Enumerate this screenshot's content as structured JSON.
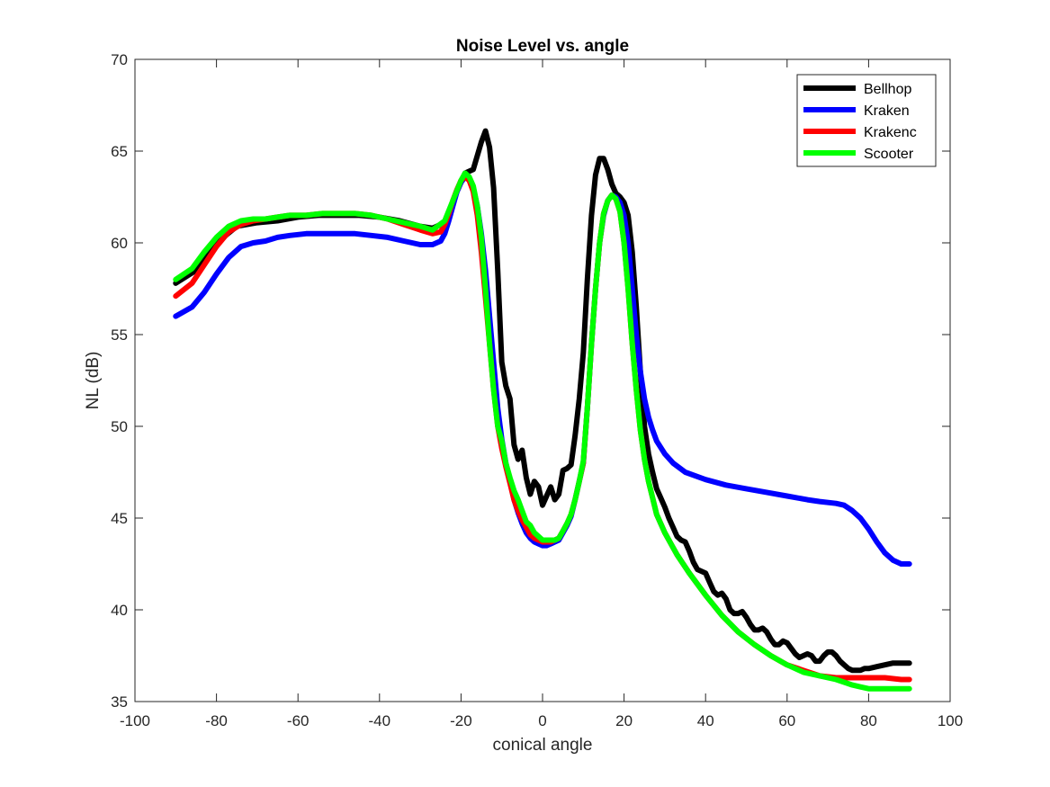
{
  "chart_data": {
    "type": "line",
    "title": "Noise Level vs. angle",
    "xlabel": "conical angle",
    "ylabel": "NL (dB)",
    "xlim": [
      -100,
      100
    ],
    "ylim": [
      35,
      70
    ],
    "xticks": [
      -100,
      -80,
      -60,
      -40,
      -20,
      0,
      20,
      40,
      60,
      80,
      100
    ],
    "yticks": [
      35,
      40,
      45,
      50,
      55,
      60,
      65,
      70
    ],
    "xtick_labels": [
      "-100",
      "-80",
      "-60",
      "-40",
      "-20",
      "0",
      "20",
      "40",
      "60",
      "80",
      "100"
    ],
    "ytick_labels": [
      "35",
      "40",
      "45",
      "50",
      "55",
      "60",
      "65",
      "70"
    ],
    "grid": false,
    "legend_position": "top-right",
    "series": [
      {
        "name": "Bellhop",
        "color": "#000000",
        "x": [
          -90,
          -85,
          -80,
          -75,
          -70,
          -65,
          -60,
          -55,
          -50,
          -45,
          -40,
          -35,
          -30,
          -27,
          -24,
          -21,
          -19,
          -17,
          -15,
          -14,
          -13,
          -12,
          -11,
          -10,
          -9,
          -8,
          -7,
          -6,
          -5,
          -4,
          -3,
          -2,
          -1,
          0,
          1,
          2,
          3,
          4,
          5,
          6,
          7,
          8,
          9,
          10,
          11,
          12,
          13,
          14,
          15,
          16,
          17,
          18,
          19,
          20,
          21,
          22,
          23,
          24,
          25,
          26,
          27,
          28,
          29,
          30,
          31,
          32,
          33,
          34,
          35,
          36,
          37,
          38,
          39,
          40,
          41,
          42,
          43,
          44,
          45,
          46,
          47,
          48,
          49,
          50,
          51,
          52,
          53,
          54,
          55,
          56,
          57,
          58,
          59,
          60,
          61,
          62,
          63,
          64,
          65,
          66,
          67,
          68,
          69,
          70,
          71,
          72,
          73,
          74,
          75,
          76,
          77,
          78,
          79,
          80,
          82,
          84,
          86,
          88,
          90
        ],
        "y": [
          57.8,
          58.5,
          60.0,
          60.9,
          61.1,
          61.2,
          61.4,
          61.5,
          61.5,
          61.5,
          61.4,
          61.2,
          60.9,
          60.8,
          61.1,
          62.8,
          63.8,
          64.0,
          65.5,
          66.1,
          65.2,
          63.0,
          58.5,
          53.5,
          52.2,
          51.5,
          49.0,
          48.2,
          48.7,
          47.2,
          46.3,
          47.0,
          46.7,
          45.7,
          46.2,
          46.7,
          46.0,
          46.3,
          47.6,
          47.7,
          47.9,
          49.5,
          51.5,
          54.0,
          58.0,
          61.5,
          63.7,
          64.6,
          64.6,
          64.0,
          63.2,
          62.7,
          62.5,
          62.2,
          61.5,
          59.5,
          56.5,
          53.0,
          50.0,
          48.5,
          47.5,
          46.6,
          46.1,
          45.6,
          45.0,
          44.5,
          44.0,
          43.8,
          43.7,
          43.2,
          42.6,
          42.2,
          42.1,
          42.0,
          41.5,
          41.0,
          40.8,
          40.9,
          40.6,
          40.0,
          39.8,
          39.8,
          39.9,
          39.6,
          39.2,
          38.9,
          38.9,
          39.0,
          38.8,
          38.4,
          38.1,
          38.1,
          38.3,
          38.2,
          37.9,
          37.6,
          37.4,
          37.5,
          37.6,
          37.5,
          37.2,
          37.2,
          37.5,
          37.7,
          37.7,
          37.5,
          37.2,
          37.0,
          36.8,
          36.7,
          36.7,
          36.7,
          36.8,
          36.8,
          36.9,
          37.0,
          37.1,
          37.1,
          37.1
        ]
      },
      {
        "name": "Kraken",
        "color": "#0000ff",
        "x": [
          -90,
          -86,
          -83,
          -80,
          -77,
          -74,
          -71,
          -68,
          -65,
          -62,
          -58,
          -54,
          -50,
          -46,
          -42,
          -38,
          -34,
          -30,
          -27,
          -25,
          -24,
          -23,
          -22,
          -21,
          -20,
          -19,
          -18,
          -17,
          -16,
          -15,
          -14,
          -13,
          -12,
          -11,
          -10,
          -9,
          -8,
          -7,
          -6,
          -5,
          -4,
          -3,
          -2,
          -1,
          0,
          1,
          2,
          3,
          4,
          5,
          6,
          7,
          8,
          9,
          10,
          11,
          12,
          13,
          14,
          15,
          16,
          17,
          18,
          19,
          20,
          21,
          22,
          23,
          24,
          25,
          26,
          27,
          28,
          30,
          32,
          35,
          40,
          45,
          50,
          55,
          60,
          65,
          68,
          72,
          74,
          76,
          78,
          80,
          82,
          84,
          86,
          88,
          90
        ],
        "y": [
          56.0,
          56.5,
          57.3,
          58.3,
          59.2,
          59.8,
          60.0,
          60.1,
          60.3,
          60.4,
          60.5,
          60.5,
          60.5,
          60.5,
          60.4,
          60.3,
          60.1,
          59.9,
          59.9,
          60.1,
          60.5,
          61.2,
          62.0,
          62.8,
          63.3,
          63.6,
          63.5,
          63.0,
          62.0,
          60.5,
          58.5,
          56.0,
          53.5,
          51.0,
          49.3,
          48.0,
          47.0,
          46.0,
          45.3,
          44.7,
          44.2,
          43.9,
          43.7,
          43.6,
          43.5,
          43.5,
          43.6,
          43.7,
          43.8,
          44.2,
          44.6,
          45.1,
          46.0,
          47.0,
          48.0,
          51.0,
          54.5,
          57.5,
          60.0,
          61.5,
          62.3,
          62.6,
          62.5,
          62.2,
          61.5,
          60.0,
          57.5,
          55.0,
          53.0,
          51.5,
          50.5,
          49.8,
          49.2,
          48.5,
          48.0,
          47.5,
          47.1,
          46.8,
          46.6,
          46.4,
          46.2,
          46.0,
          45.9,
          45.8,
          45.7,
          45.4,
          45.0,
          44.4,
          43.7,
          43.1,
          42.7,
          42.5,
          42.5
        ]
      },
      {
        "name": "Krakenc",
        "color": "#ff0000",
        "x": [
          -90,
          -86,
          -83,
          -80,
          -77,
          -74,
          -71,
          -68,
          -65,
          -62,
          -58,
          -54,
          -50,
          -46,
          -42,
          -38,
          -34,
          -30,
          -27,
          -25,
          -24,
          -23,
          -22,
          -21,
          -20,
          -19,
          -18,
          -17,
          -16,
          -15,
          -14,
          -13,
          -12,
          -11,
          -10,
          -9,
          -8,
          -7,
          -6,
          -5,
          -4,
          -3,
          -2,
          -1,
          0,
          1,
          2,
          3,
          4,
          5,
          6,
          7,
          8,
          9,
          10,
          11,
          12,
          13,
          14,
          15,
          16,
          17,
          18,
          19,
          20,
          21,
          22,
          23,
          24,
          25,
          26,
          28,
          30,
          33,
          36,
          40,
          44,
          48,
          52,
          56,
          60,
          64,
          68,
          72,
          76,
          80,
          84,
          88,
          90
        ],
        "y": [
          57.1,
          57.8,
          58.8,
          59.8,
          60.6,
          61.0,
          61.2,
          61.3,
          61.4,
          61.5,
          61.5,
          61.6,
          61.6,
          61.6,
          61.5,
          61.3,
          61.0,
          60.7,
          60.5,
          60.6,
          61.0,
          61.6,
          62.3,
          62.9,
          63.4,
          63.6,
          63.4,
          62.8,
          61.5,
          59.5,
          57.0,
          54.5,
          52.0,
          50.0,
          48.8,
          47.8,
          46.9,
          46.0,
          45.4,
          44.9,
          44.5,
          44.1,
          43.9,
          43.8,
          43.7,
          43.7,
          43.7,
          43.8,
          43.9,
          44.3,
          44.7,
          45.2,
          46.0,
          47.0,
          48.0,
          51.0,
          54.5,
          57.5,
          60.0,
          61.6,
          62.3,
          62.6,
          62.4,
          61.7,
          60.0,
          57.5,
          54.5,
          52.0,
          49.8,
          48.2,
          47.0,
          45.2,
          44.2,
          43.0,
          42.0,
          40.8,
          39.7,
          38.8,
          38.1,
          37.5,
          37.0,
          36.7,
          36.4,
          36.3,
          36.3,
          36.3,
          36.3,
          36.2,
          36.2
        ]
      },
      {
        "name": "Scooter",
        "color": "#00ff00",
        "x": [
          -90,
          -86,
          -83,
          -80,
          -77,
          -74,
          -71,
          -68,
          -65,
          -62,
          -58,
          -54,
          -50,
          -46,
          -42,
          -38,
          -34,
          -30,
          -27,
          -24,
          -22,
          -20,
          -19,
          -18,
          -17,
          -16,
          -15,
          -14,
          -13,
          -12,
          -11,
          -10,
          -9,
          -8,
          -7,
          -6,
          -5,
          -4,
          -3,
          -2,
          -1,
          0,
          1,
          2,
          3,
          4,
          5,
          6,
          7,
          8,
          9,
          10,
          11,
          12,
          13,
          14,
          15,
          16,
          17,
          18,
          19,
          20,
          21,
          22,
          23,
          24,
          25,
          26,
          28,
          30,
          33,
          36,
          40,
          44,
          48,
          52,
          56,
          60,
          64,
          68,
          72,
          76,
          78,
          80,
          84,
          88,
          90
        ],
        "y": [
          58.0,
          58.6,
          59.5,
          60.3,
          60.9,
          61.2,
          61.3,
          61.3,
          61.4,
          61.5,
          61.5,
          61.6,
          61.6,
          61.6,
          61.5,
          61.3,
          61.1,
          60.9,
          60.7,
          61.2,
          62.3,
          63.4,
          63.8,
          63.6,
          63.1,
          62.0,
          60.3,
          57.5,
          54.5,
          52.0,
          50.0,
          49.2,
          48.0,
          47.2,
          46.5,
          46.0,
          45.4,
          44.8,
          44.6,
          44.2,
          44.0,
          43.8,
          43.8,
          43.8,
          43.8,
          43.9,
          44.3,
          44.7,
          45.2,
          46.0,
          47.0,
          48.1,
          51.0,
          54.5,
          57.5,
          60.0,
          61.6,
          62.3,
          62.6,
          62.4,
          61.7,
          60.0,
          57.5,
          54.5,
          52.0,
          49.8,
          48.2,
          47.0,
          45.2,
          44.2,
          43.0,
          42.0,
          40.8,
          39.7,
          38.8,
          38.1,
          37.5,
          37.0,
          36.6,
          36.4,
          36.2,
          35.9,
          35.8,
          35.7,
          35.7,
          35.7,
          35.7
        ]
      }
    ]
  }
}
